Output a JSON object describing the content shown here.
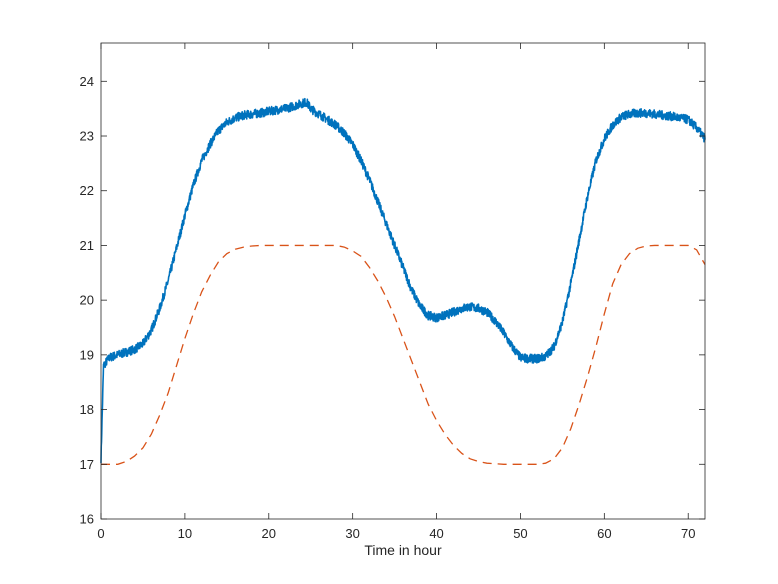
{
  "chart_data": {
    "type": "line",
    "title": "",
    "xlabel": "Time in hour",
    "ylabel": "",
    "xlim": [
      0,
      72
    ],
    "ylim": [
      16,
      24.7
    ],
    "xticks": [
      0,
      10,
      20,
      30,
      40,
      50,
      60,
      70
    ],
    "yticks": [
      16,
      17,
      18,
      19,
      20,
      21,
      22,
      23,
      24
    ],
    "grid": false,
    "legend": "none",
    "series": [
      {
        "style": "solid-noisy",
        "color": "#0072BD",
        "x": [
          0,
          0.3,
          1,
          2,
          3,
          4,
          5,
          6,
          7,
          8,
          9,
          10,
          11,
          12,
          13,
          14,
          15,
          16,
          17,
          18,
          19,
          20,
          21,
          22,
          23,
          24,
          24.5,
          25,
          26,
          27,
          28,
          29,
          30,
          31,
          32,
          33,
          34,
          35,
          36,
          37,
          38,
          39,
          40,
          41,
          42,
          43,
          44,
          45,
          46,
          47,
          48,
          49,
          50,
          51,
          52,
          53,
          54,
          55,
          56,
          57,
          58,
          59,
          60,
          61,
          62,
          63,
          64,
          65,
          66,
          67,
          68,
          69,
          70,
          71,
          72
        ],
        "values": [
          17.1,
          18.8,
          18.95,
          19.0,
          19.05,
          19.1,
          19.2,
          19.45,
          19.85,
          20.35,
          20.95,
          21.55,
          22.1,
          22.55,
          22.85,
          23.1,
          23.25,
          23.33,
          23.38,
          23.4,
          23.42,
          23.45,
          23.48,
          23.5,
          23.55,
          23.6,
          23.62,
          23.5,
          23.4,
          23.3,
          23.2,
          23.05,
          22.85,
          22.55,
          22.2,
          21.8,
          21.4,
          21.0,
          20.6,
          20.2,
          19.9,
          19.72,
          19.68,
          19.72,
          19.78,
          19.85,
          19.88,
          19.85,
          19.78,
          19.62,
          19.4,
          19.15,
          18.95,
          18.93,
          18.93,
          18.97,
          19.15,
          19.6,
          20.3,
          21.1,
          21.9,
          22.55,
          22.95,
          23.2,
          23.35,
          23.4,
          23.42,
          23.42,
          23.4,
          23.38,
          23.36,
          23.33,
          23.3,
          23.15,
          22.95
        ]
      },
      {
        "style": "dashed",
        "color": "#D95319",
        "x": [
          0,
          1,
          2,
          3,
          4,
          5,
          6,
          7,
          8,
          9,
          10,
          11,
          12,
          13,
          14,
          15,
          16,
          17,
          18,
          19,
          20,
          22,
          24,
          26,
          28,
          29,
          30,
          31,
          32,
          33,
          34,
          35,
          36,
          37,
          38,
          39,
          40,
          41,
          42,
          43,
          44,
          45,
          46,
          48,
          50,
          52,
          53,
          54,
          55,
          56,
          57,
          58,
          59,
          60,
          61,
          62,
          63,
          64,
          65,
          66,
          68,
          70,
          71,
          72
        ],
        "values": [
          17.0,
          17.0,
          17.0,
          17.05,
          17.15,
          17.3,
          17.55,
          17.9,
          18.3,
          18.8,
          19.3,
          19.75,
          20.15,
          20.45,
          20.7,
          20.85,
          20.93,
          20.97,
          20.99,
          21.0,
          21.0,
          21.0,
          21.0,
          21.0,
          21.0,
          20.97,
          20.9,
          20.8,
          20.6,
          20.35,
          20.05,
          19.7,
          19.3,
          18.9,
          18.5,
          18.1,
          17.8,
          17.55,
          17.35,
          17.2,
          17.1,
          17.05,
          17.02,
          17.0,
          17.0,
          17.0,
          17.02,
          17.1,
          17.3,
          17.65,
          18.1,
          18.6,
          19.15,
          19.75,
          20.3,
          20.65,
          20.85,
          20.95,
          20.99,
          21.0,
          21.0,
          21.0,
          20.92,
          20.65
        ]
      }
    ]
  }
}
